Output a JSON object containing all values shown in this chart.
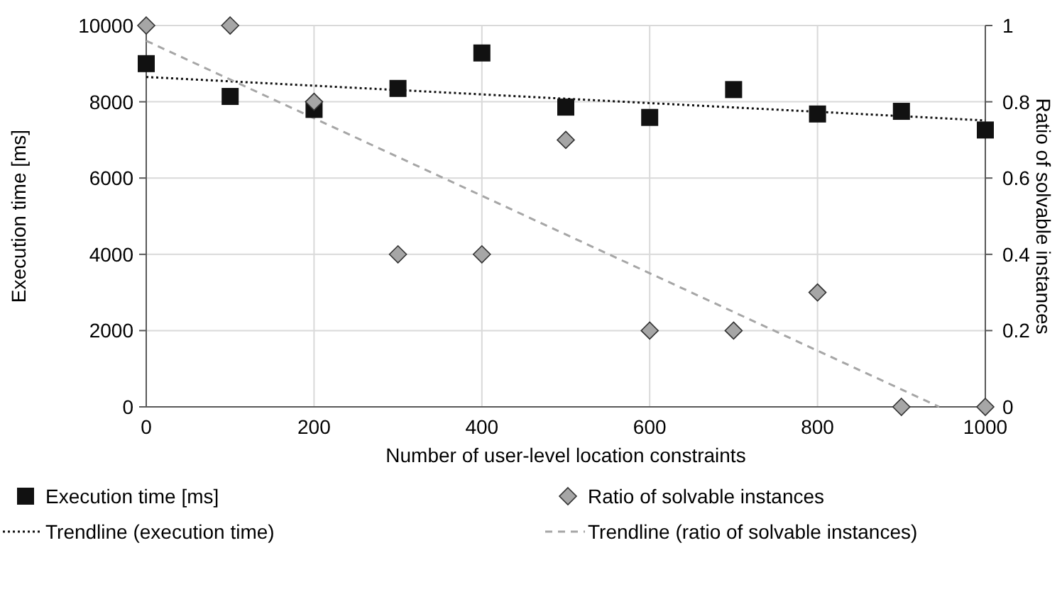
{
  "chart_data": {
    "type": "scatter",
    "xlabel": "Number of user-level location constraints",
    "ylabel": "Execution time [ms]",
    "y2label": "Ratio of solvable instances",
    "x": [
      0,
      100,
      200,
      300,
      400,
      500,
      600,
      700,
      800,
      900,
      1000
    ],
    "series": [
      {
        "name": "Execution time [ms]",
        "color": "#111111",
        "marker": "square",
        "values": [
          9000,
          8140,
          7800,
          8350,
          9280,
          7860,
          7590,
          8320,
          7680,
          7750,
          7260
        ]
      },
      {
        "name": "Ratio of solvable instances",
        "color": "#a6a6a6",
        "marker": "diamond",
        "axis": "y2",
        "values": [
          1,
          1,
          0.8,
          0.4,
          0.4,
          0.7,
          0.2,
          0.2,
          0.3,
          0,
          0
        ]
      },
      {
        "name": "Trendline (execution time)",
        "type": "line",
        "color": "#111111",
        "line_style": "dotted",
        "marker": "none",
        "x": [
          0,
          1000
        ],
        "values": [
          8650,
          7510
        ]
      },
      {
        "name": "Trendline (ratio of solvable instances)",
        "type": "line",
        "color": "#a6a6a6",
        "line_style": "dashed",
        "marker": "none",
        "axis": "y2",
        "x": [
          0,
          945
        ],
        "values": [
          0.96,
          0
        ]
      }
    ],
    "xlim": [
      0,
      1000
    ],
    "xticks": [
      0,
      200,
      400,
      600,
      800,
      1000
    ],
    "ylim": [
      0,
      10000
    ],
    "yticks": [
      0,
      2000,
      4000,
      6000,
      8000,
      10000
    ],
    "y2lim": [
      0,
      1
    ],
    "y2ticks": [
      0,
      0.2,
      0.4,
      0.6,
      0.8,
      1
    ],
    "grid": true,
    "legend": "bottom"
  }
}
